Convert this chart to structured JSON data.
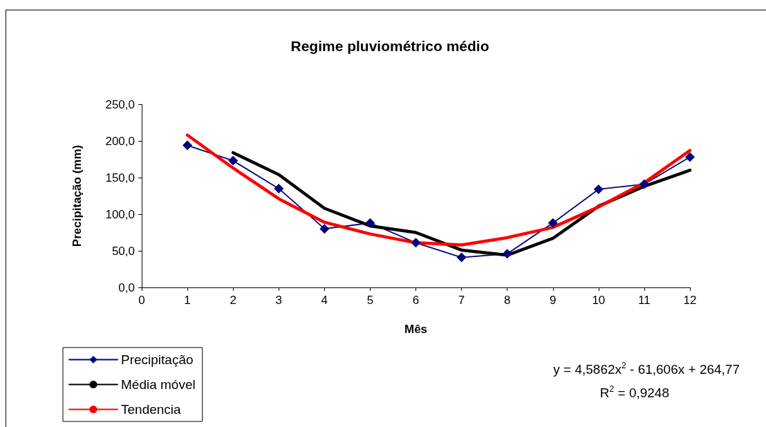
{
  "chart_data": {
    "type": "line",
    "title": "Regime pluviométrico médio",
    "xlabel": "Mês",
    "ylabel": "Precipitação (mm)",
    "xlim": [
      0,
      12
    ],
    "xticks": [
      0,
      1,
      2,
      3,
      4,
      5,
      6,
      7,
      8,
      9,
      10,
      11,
      12
    ],
    "ylim": [
      0,
      250
    ],
    "yticks": [
      {
        "value": 0,
        "label": "0,0"
      },
      {
        "value": 50,
        "label": "50,0"
      },
      {
        "value": 100,
        "label": "100,0"
      },
      {
        "value": 150,
        "label": "150,0"
      },
      {
        "value": 200,
        "label": "200,0"
      },
      {
        "value": 250,
        "label": "250,0"
      }
    ],
    "grid": false,
    "legend": "bottom left",
    "series": [
      {
        "name": "Precipitação",
        "color": "#000080",
        "marker": "diamond",
        "x": [
          1,
          2,
          3,
          4,
          5,
          6,
          7,
          8,
          9,
          10,
          11,
          12
        ],
        "values": [
          194,
          173,
          135,
          80,
          88,
          61,
          41,
          46,
          88,
          134,
          141,
          178
        ]
      },
      {
        "name": "Média móvel",
        "color": "#000000",
        "marker": "none",
        "x": [
          2,
          3,
          4,
          5,
          6,
          7,
          8,
          9,
          10,
          11,
          12
        ],
        "values": [
          184,
          154,
          108,
          84,
          75,
          51,
          44,
          67,
          111,
          138,
          160
        ]
      },
      {
        "name": "Tendencia",
        "color": "#ff0000",
        "marker": "none",
        "x": [
          1,
          2,
          3,
          4,
          5,
          6,
          7,
          8,
          9,
          10,
          11,
          12
        ],
        "values": [
          208,
          163,
          121,
          89,
          73,
          61,
          58,
          68,
          82,
          110,
          143,
          187
        ]
      }
    ],
    "annotations": [
      "y = 4,5862x$^{2}$ - 61,606x + 264,77",
      "R$^{2}$ = 0,9248"
    ]
  }
}
